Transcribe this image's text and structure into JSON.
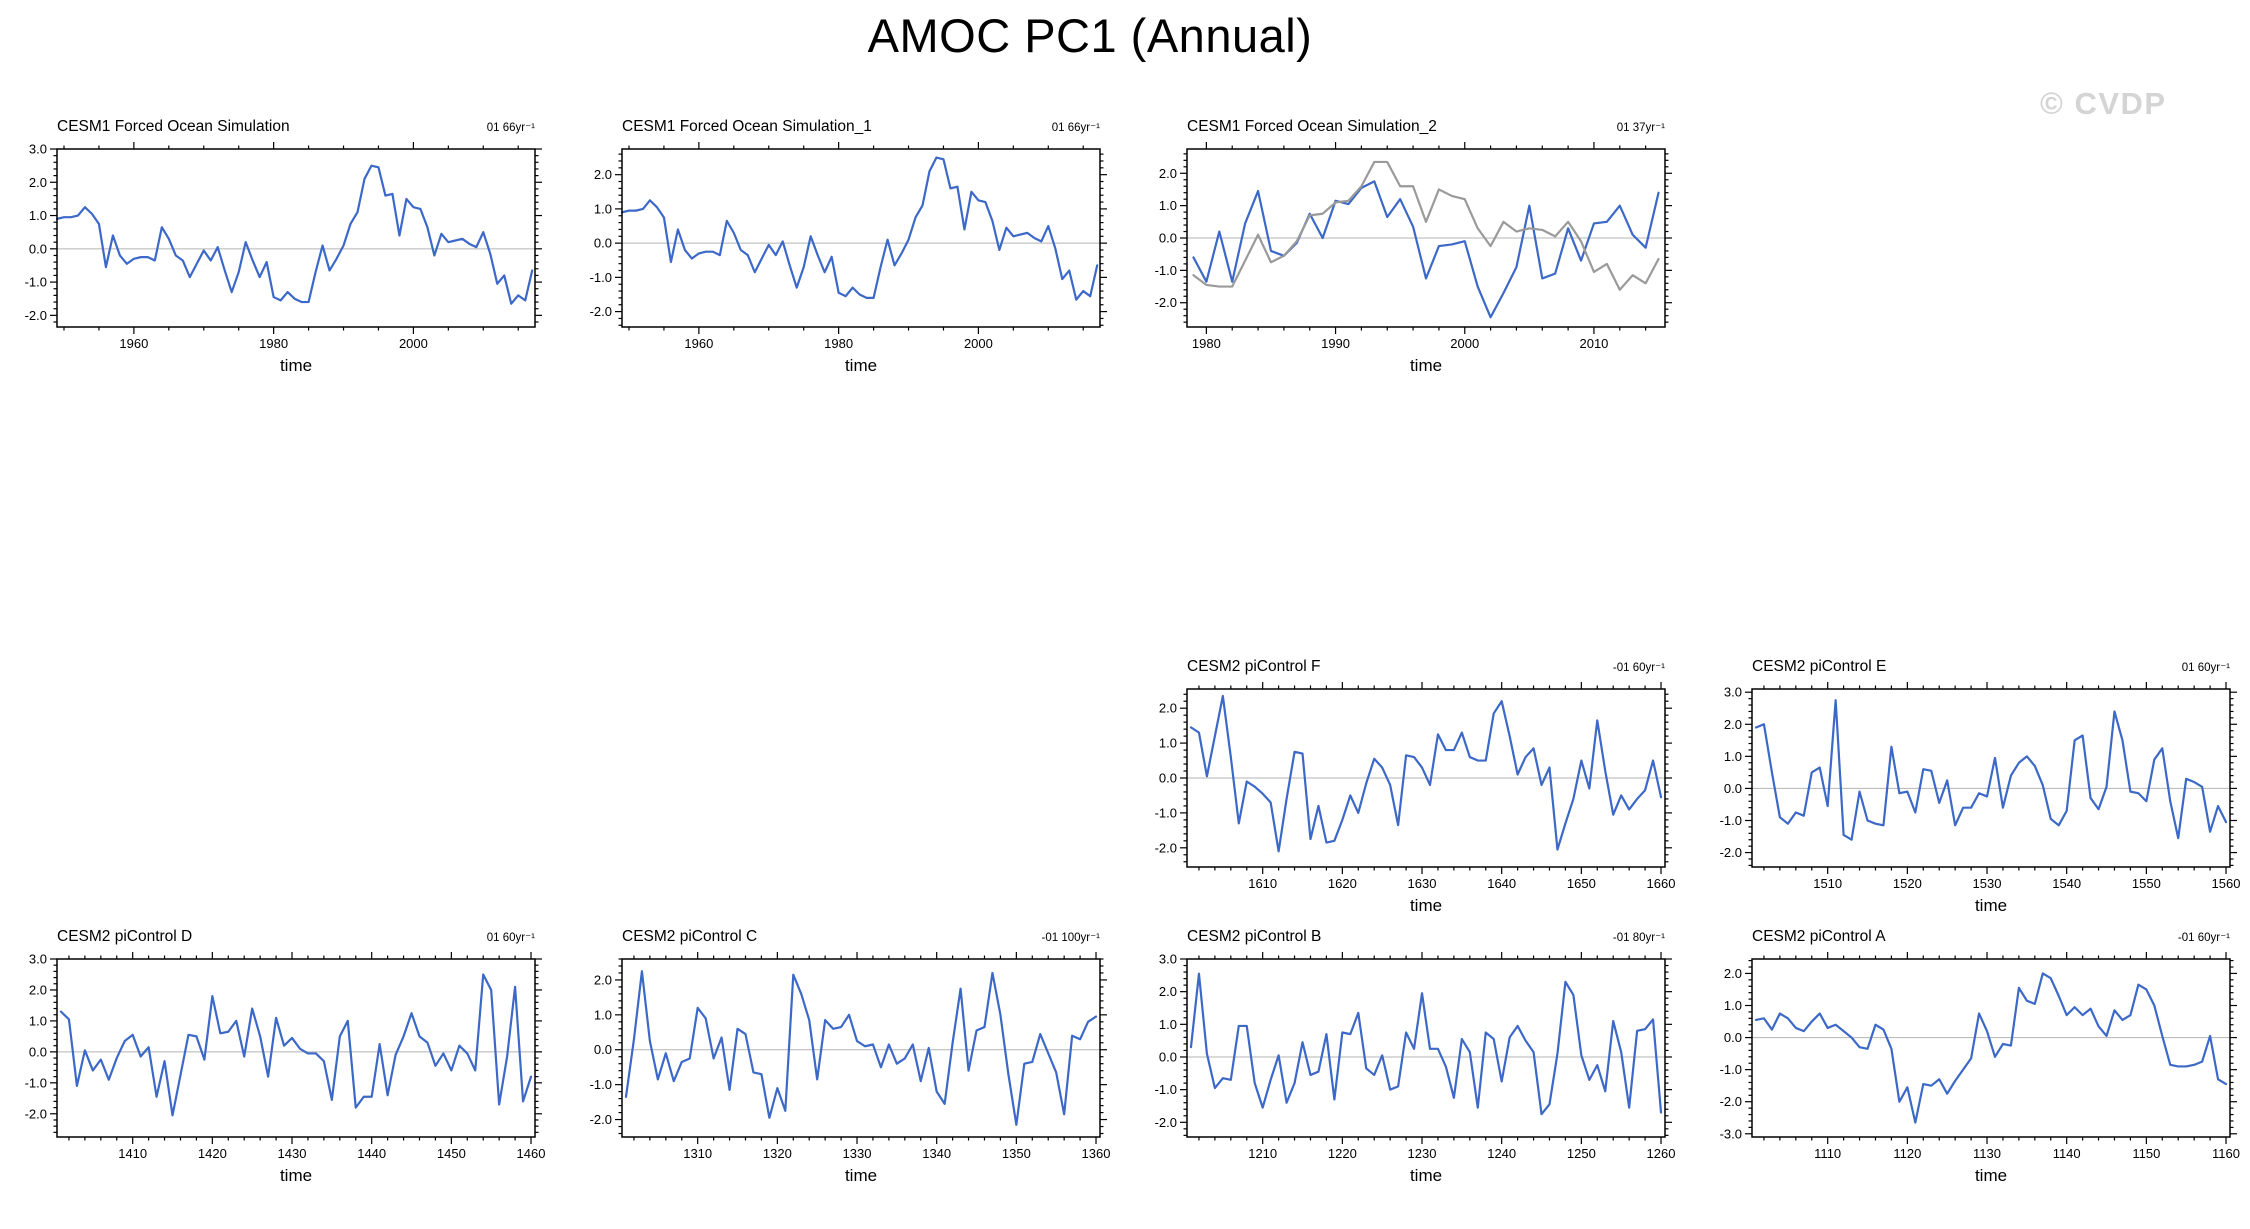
{
  "page": {
    "title": "AMOC PC1 (Annual)",
    "watermark": "© CVDP",
    "background": "#ffffff"
  },
  "colors": {
    "blue": "#3c68c8",
    "gray": "#9a9a9a",
    "zero_line": "#b5b5b5",
    "axis": "#000000",
    "watermark": "#d4d4d4"
  },
  "chart_data": [
    {
      "id": "cesm1-forced-ocean-simulation",
      "type": "line",
      "row": 0,
      "col": 0,
      "title": "CESM1 Forced Ocean Simulation",
      "annotation": "01 66yr⁻¹",
      "xlabel": "time",
      "x_start": 1949,
      "x_step": 1,
      "xlim": [
        1949,
        2017.4
      ],
      "xticks": [
        1960,
        1980,
        2000
      ],
      "x_minor_step": 5,
      "ylim": [
        -2.35,
        3.0
      ],
      "yticks": [
        3.0,
        2.0,
        1.0,
        0.0,
        -1.0,
        -2.0
      ],
      "y_minor_step": 0.2,
      "grid_zero": true,
      "legend": null,
      "series": [
        {
          "name": "primary",
          "color_key": "blue",
          "values": [
            0.9,
            0.95,
            0.95,
            1.0,
            1.25,
            1.05,
            0.75,
            -0.55,
            0.4,
            -0.2,
            -0.45,
            -0.3,
            -0.25,
            -0.25,
            -0.35,
            0.65,
            0.3,
            -0.2,
            -0.35,
            -0.85,
            -0.45,
            -0.05,
            -0.35,
            0.05,
            -0.65,
            -1.3,
            -0.7,
            0.2,
            -0.35,
            -0.85,
            -0.4,
            -1.45,
            -1.55,
            -1.3,
            -1.5,
            -1.6,
            -1.6,
            -0.7,
            0.1,
            -0.65,
            -0.3,
            0.1,
            0.75,
            1.1,
            2.1,
            2.5,
            2.45,
            1.6,
            1.65,
            0.4,
            1.5,
            1.25,
            1.2,
            0.65,
            -0.2,
            0.45,
            0.2,
            0.25,
            0.3,
            0.15,
            0.05,
            0.5,
            -0.15,
            -1.05,
            -0.8,
            -1.65,
            -1.4,
            -1.55,
            -0.65
          ]
        }
      ]
    },
    {
      "id": "cesm1-forced-ocean-simulation-1",
      "type": "line",
      "row": 0,
      "col": 1,
      "title": "CESM1 Forced Ocean Simulation_1",
      "annotation": "01 66yr⁻¹",
      "xlabel": "time",
      "x_start": 1949,
      "x_step": 1,
      "xlim": [
        1949,
        2017.4
      ],
      "xticks": [
        1960,
        1980,
        2000
      ],
      "x_minor_step": 5,
      "ylim": [
        -2.45,
        2.75
      ],
      "yticks": [
        2.0,
        1.0,
        0.0,
        -1.0,
        -2.0
      ],
      "y_minor_step": 0.2,
      "grid_zero": true,
      "legend": null,
      "series": [
        {
          "name": "primary",
          "color_key": "blue",
          "values": [
            0.9,
            0.95,
            0.95,
            1.0,
            1.25,
            1.05,
            0.75,
            -0.55,
            0.4,
            -0.2,
            -0.45,
            -0.3,
            -0.25,
            -0.25,
            -0.35,
            0.65,
            0.3,
            -0.2,
            -0.35,
            -0.85,
            -0.45,
            -0.05,
            -0.35,
            0.05,
            -0.65,
            -1.3,
            -0.7,
            0.2,
            -0.35,
            -0.85,
            -0.4,
            -1.45,
            -1.55,
            -1.3,
            -1.5,
            -1.6,
            -1.6,
            -0.7,
            0.1,
            -0.65,
            -0.3,
            0.1,
            0.75,
            1.1,
            2.1,
            2.5,
            2.45,
            1.6,
            1.65,
            0.4,
            1.5,
            1.25,
            1.2,
            0.65,
            -0.2,
            0.45,
            0.2,
            0.25,
            0.3,
            0.15,
            0.05,
            0.5,
            -0.15,
            -1.05,
            -0.8,
            -1.65,
            -1.4,
            -1.55,
            -0.65
          ]
        }
      ]
    },
    {
      "id": "cesm1-forced-ocean-simulation-2",
      "type": "line",
      "row": 0,
      "col": 2,
      "title": "CESM1 Forced Ocean Simulation_2",
      "annotation": "01 37yr⁻¹",
      "xlabel": "time",
      "x_start": 1979,
      "x_step": 1,
      "xlim": [
        1978.5,
        2015.5
      ],
      "xticks": [
        1980,
        1990,
        2000,
        2010
      ],
      "x_minor_step": 2,
      "ylim": [
        -2.75,
        2.75
      ],
      "yticks": [
        2.0,
        1.0,
        0.0,
        -1.0,
        -2.0
      ],
      "y_minor_step": 0.2,
      "grid_zero": true,
      "legend": null,
      "series": [
        {
          "name": "primary",
          "color_key": "blue",
          "values": [
            -0.6,
            -1.35,
            0.2,
            -1.35,
            0.45,
            1.45,
            -0.4,
            -0.55,
            -0.15,
            0.75,
            0.0,
            1.15,
            1.05,
            1.55,
            1.75,
            0.65,
            1.2,
            0.35,
            -1.25,
            -0.25,
            -0.2,
            -0.1,
            -1.5,
            -2.45,
            -1.7,
            -0.9,
            1.0,
            -1.25,
            -1.1,
            0.3,
            -0.7,
            0.45,
            0.5,
            1.0,
            0.1,
            -0.3,
            1.4
          ]
        },
        {
          "name": "secondary",
          "color_key": "gray",
          "values": [
            -1.15,
            -1.45,
            -1.5,
            -1.5,
            -0.7,
            0.1,
            -0.75,
            -0.55,
            -0.1,
            0.7,
            0.75,
            1.1,
            1.15,
            1.6,
            2.35,
            2.35,
            1.6,
            1.6,
            0.5,
            1.5,
            1.3,
            1.2,
            0.3,
            -0.25,
            0.5,
            0.2,
            0.3,
            0.25,
            0.05,
            0.5,
            -0.1,
            -1.05,
            -0.8,
            -1.6,
            -1.15,
            -1.4,
            -0.65
          ]
        }
      ]
    },
    {
      "id": "cesm2-picontrol-f",
      "type": "line",
      "row": 1,
      "col": 2,
      "title": "CESM2 piControl F",
      "annotation": "-01 60yr⁻¹",
      "xlabel": "time",
      "x_start": 1601,
      "x_step": 1,
      "xlim": [
        1600.5,
        1660.5
      ],
      "xticks": [
        1610,
        1620,
        1630,
        1640,
        1650,
        1660
      ],
      "x_minor_step": 2,
      "ylim": [
        -2.55,
        2.55
      ],
      "yticks": [
        2.0,
        1.0,
        0.0,
        -1.0,
        -2.0
      ],
      "y_minor_step": 0.2,
      "grid_zero": true,
      "legend": null,
      "series": [
        {
          "name": "primary",
          "color_key": "blue",
          "values": [
            1.45,
            1.3,
            0.05,
            1.2,
            2.35,
            0.6,
            -1.3,
            -0.1,
            -0.25,
            -0.45,
            -0.7,
            -2.1,
            -0.6,
            0.75,
            0.7,
            -1.75,
            -0.8,
            -1.85,
            -1.8,
            -1.2,
            -0.5,
            -1.0,
            -0.15,
            0.55,
            0.3,
            -0.2,
            -1.35,
            0.65,
            0.6,
            0.3,
            -0.2,
            1.25,
            0.8,
            0.8,
            1.3,
            0.6,
            0.5,
            0.5,
            1.85,
            2.2,
            1.2,
            0.1,
            0.6,
            0.85,
            -0.2,
            0.3,
            -2.05,
            -1.3,
            -0.6,
            0.5,
            -0.3,
            1.65,
            0.2,
            -1.05,
            -0.5,
            -0.9,
            -0.6,
            -0.35,
            0.5,
            -0.55
          ]
        }
      ]
    },
    {
      "id": "cesm2-picontrol-e",
      "type": "line",
      "row": 1,
      "col": 3,
      "title": "CESM2 piControl E",
      "annotation": "01 60yr⁻¹",
      "xlabel": "time",
      "x_start": 1501,
      "x_step": 1,
      "xlim": [
        1500.5,
        1560.5
      ],
      "xticks": [
        1510,
        1520,
        1530,
        1540,
        1550,
        1560
      ],
      "x_minor_step": 2,
      "ylim": [
        -2.45,
        3.1
      ],
      "yticks": [
        3.0,
        2.0,
        1.0,
        0.0,
        -1.0,
        -2.0
      ],
      "y_minor_step": 0.2,
      "grid_zero": true,
      "legend": null,
      "series": [
        {
          "name": "primary",
          "color_key": "blue",
          "values": [
            1.9,
            2.0,
            0.5,
            -0.9,
            -1.1,
            -0.75,
            -0.85,
            0.5,
            0.65,
            -0.55,
            2.75,
            -1.45,
            -1.6,
            -0.1,
            -1.0,
            -1.1,
            -1.15,
            1.3,
            -0.15,
            -0.1,
            -0.75,
            0.6,
            0.55,
            -0.45,
            0.25,
            -1.15,
            -0.6,
            -0.6,
            -0.15,
            -0.25,
            0.95,
            -0.6,
            0.4,
            0.8,
            1.0,
            0.7,
            0.1,
            -0.95,
            -1.15,
            -0.7,
            1.5,
            1.65,
            -0.3,
            -0.65,
            0.05,
            2.4,
            1.5,
            -0.1,
            -0.15,
            -0.4,
            0.9,
            1.25,
            -0.4,
            -1.55,
            0.3,
            0.2,
            0.05,
            -1.35,
            -0.55,
            -1.05
          ]
        }
      ]
    },
    {
      "id": "cesm2-picontrol-d",
      "type": "line",
      "row": 2,
      "col": 0,
      "title": "CESM2 piControl D",
      "annotation": "01 60yr⁻¹",
      "xlabel": "time",
      "x_start": 1401,
      "x_step": 1,
      "xlim": [
        1400.5,
        1460.5
      ],
      "xticks": [
        1410,
        1420,
        1430,
        1440,
        1450,
        1460
      ],
      "x_minor_step": 2,
      "ylim": [
        -2.75,
        3.0
      ],
      "yticks": [
        3.0,
        2.0,
        1.0,
        0.0,
        -1.0,
        -2.0
      ],
      "y_minor_step": 0.2,
      "grid_zero": true,
      "legend": null,
      "series": [
        {
          "name": "primary",
          "color_key": "blue",
          "values": [
            1.3,
            1.05,
            -1.1,
            0.05,
            -0.6,
            -0.25,
            -0.9,
            -0.2,
            0.35,
            0.55,
            -0.15,
            0.15,
            -1.45,
            -0.3,
            -2.05,
            -0.75,
            0.55,
            0.5,
            -0.25,
            1.8,
            0.6,
            0.65,
            1.0,
            -0.15,
            1.4,
            0.5,
            -0.8,
            1.1,
            0.2,
            0.45,
            0.1,
            -0.05,
            -0.05,
            -0.3,
            -1.55,
            0.5,
            1.0,
            -1.8,
            -1.45,
            -1.45,
            0.25,
            -1.4,
            -0.1,
            0.5,
            1.25,
            0.5,
            0.3,
            -0.45,
            -0.05,
            -0.6,
            0.2,
            -0.05,
            -0.6,
            2.5,
            2.0,
            -1.7,
            -0.15,
            2.1,
            -1.6,
            -0.8
          ]
        }
      ]
    },
    {
      "id": "cesm2-picontrol-c",
      "type": "line",
      "row": 2,
      "col": 1,
      "title": "CESM2 piControl C",
      "annotation": "-01 100yr⁻¹",
      "xlabel": "time",
      "x_start": 1301,
      "x_step": 1,
      "xlim": [
        1300.5,
        1360.5
      ],
      "xticks": [
        1310,
        1320,
        1330,
        1340,
        1350,
        1360
      ],
      "x_minor_step": 2,
      "ylim": [
        -2.5,
        2.6
      ],
      "yticks": [
        2.0,
        1.0,
        0.0,
        -1.0,
        -2.0
      ],
      "y_minor_step": 0.2,
      "grid_zero": true,
      "legend": null,
      "series": [
        {
          "name": "primary",
          "color_key": "blue",
          "values": [
            -1.35,
            0.3,
            2.25,
            0.25,
            -0.85,
            -0.1,
            -0.9,
            -0.35,
            -0.25,
            1.2,
            0.9,
            -0.25,
            0.35,
            -1.15,
            0.6,
            0.45,
            -0.65,
            -0.7,
            -1.95,
            -1.1,
            -1.75,
            2.15,
            1.6,
            0.85,
            -0.85,
            0.85,
            0.6,
            0.65,
            1.0,
            0.25,
            0.1,
            0.15,
            -0.5,
            0.15,
            -0.4,
            -0.25,
            0.15,
            -0.9,
            0.05,
            -1.2,
            -1.55,
            0.2,
            1.75,
            -0.6,
            0.55,
            0.65,
            2.2,
            1.0,
            -0.7,
            -2.15,
            -0.4,
            -0.35,
            0.45,
            -0.1,
            -0.65,
            -1.85,
            0.4,
            0.3,
            0.8,
            0.95
          ]
        }
      ]
    },
    {
      "id": "cesm2-picontrol-b",
      "type": "line",
      "row": 2,
      "col": 2,
      "title": "CESM2 piControl B",
      "annotation": "-01 80yr⁻¹",
      "xlabel": "time",
      "x_start": 1201,
      "x_step": 1,
      "xlim": [
        1200.5,
        1260.5
      ],
      "xticks": [
        1210,
        1220,
        1230,
        1240,
        1250,
        1260
      ],
      "x_minor_step": 2,
      "ylim": [
        -2.45,
        3.0
      ],
      "yticks": [
        3.0,
        2.0,
        1.0,
        0.0,
        -1.0,
        -2.0
      ],
      "y_minor_step": 0.2,
      "grid_zero": true,
      "legend": null,
      "series": [
        {
          "name": "primary",
          "color_key": "blue",
          "values": [
            0.3,
            2.55,
            0.1,
            -0.95,
            -0.65,
            -0.7,
            0.95,
            0.95,
            -0.8,
            -1.55,
            -0.7,
            0.05,
            -1.4,
            -0.8,
            0.45,
            -0.55,
            -0.45,
            0.7,
            -1.3,
            0.75,
            0.7,
            1.35,
            -0.35,
            -0.55,
            0.05,
            -1.0,
            -0.9,
            0.75,
            0.25,
            1.95,
            0.25,
            0.25,
            -0.3,
            -1.25,
            0.55,
            0.15,
            -1.55,
            0.75,
            0.55,
            -0.75,
            0.6,
            0.95,
            0.5,
            0.15,
            -1.75,
            -1.45,
            0.1,
            2.3,
            1.9,
            0.05,
            -0.7,
            -0.25,
            -1.05,
            1.1,
            0.15,
            -1.55,
            0.8,
            0.85,
            1.15,
            -1.7
          ]
        }
      ]
    },
    {
      "id": "cesm2-picontrol-a",
      "type": "line",
      "row": 2,
      "col": 3,
      "title": "CESM2 piControl A",
      "annotation": "-01 60yr⁻¹",
      "xlabel": "time",
      "x_start": 1101,
      "x_step": 1,
      "xlim": [
        1100.5,
        1160.5
      ],
      "xticks": [
        1110,
        1120,
        1130,
        1140,
        1150,
        1160
      ],
      "x_minor_step": 2,
      "ylim": [
        -3.1,
        2.45
      ],
      "yticks": [
        2.0,
        1.0,
        0.0,
        -1.0,
        -2.0,
        -3.0
      ],
      "y_minor_step": 0.2,
      "grid_zero": true,
      "legend": null,
      "series": [
        {
          "name": "primary",
          "color_key": "blue",
          "values": [
            0.55,
            0.6,
            0.25,
            0.75,
            0.6,
            0.3,
            0.2,
            0.5,
            0.75,
            0.3,
            0.4,
            0.2,
            0.0,
            -0.3,
            -0.35,
            0.4,
            0.25,
            -0.35,
            -2.0,
            -1.55,
            -2.65,
            -1.45,
            -1.5,
            -1.3,
            -1.75,
            -1.35,
            -1.0,
            -0.65,
            0.75,
            0.2,
            -0.6,
            -0.2,
            -0.25,
            1.55,
            1.15,
            1.05,
            2.0,
            1.85,
            1.3,
            0.7,
            0.95,
            0.7,
            0.9,
            0.35,
            0.05,
            0.85,
            0.55,
            0.7,
            1.65,
            1.5,
            1.0,
            0.05,
            -0.85,
            -0.9,
            -0.9,
            -0.85,
            -0.75,
            0.05,
            -1.3,
            -1.45
          ]
        }
      ]
    }
  ]
}
